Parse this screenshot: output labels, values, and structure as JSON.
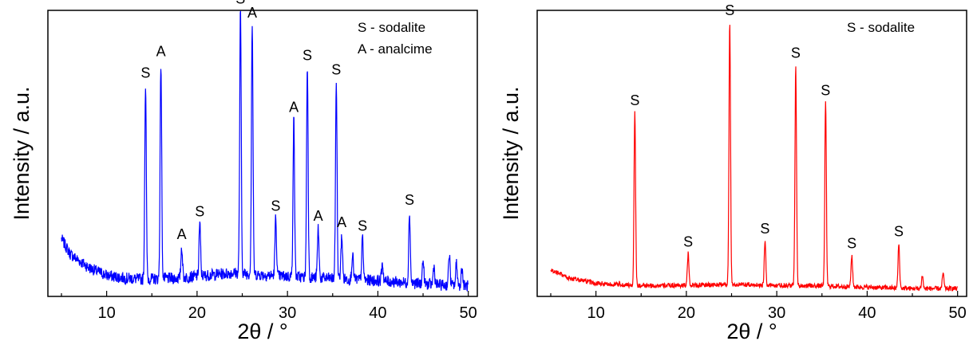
{
  "chart_data": [
    {
      "type": "line",
      "title": "",
      "xlabel": "2θ / °",
      "ylabel": "Intensity / a.u.",
      "xlim": [
        3.5,
        51
      ],
      "ylim": [
        0,
        1.09
      ],
      "xticks": [
        "10",
        "20",
        "30",
        "40",
        "50"
      ],
      "legend": [
        "S - sodalite",
        "A - analcime"
      ],
      "legend_position": "top-right",
      "series": [
        {
          "color": "#0000ff",
          "baseline": [
            [
              5,
              0.22
            ],
            [
              6,
              0.16
            ],
            [
              8,
              0.11
            ],
            [
              10,
              0.08
            ],
            [
              12,
              0.07
            ],
            [
              14,
              0.065
            ],
            [
              18,
              0.07
            ],
            [
              24,
              0.09
            ],
            [
              28,
              0.08
            ],
            [
              34,
              0.07
            ],
            [
              40,
              0.06
            ],
            [
              46,
              0.045
            ],
            [
              50,
              0.04
            ]
          ],
          "noise": 0.022,
          "peaks": [
            {
              "x": 14.3,
              "y": 0.74,
              "label": "S"
            },
            {
              "x": 16.0,
              "y": 0.82,
              "label": "A"
            },
            {
              "x": 18.3,
              "y": 0.12,
              "label": "A"
            },
            {
              "x": 20.3,
              "y": 0.2,
              "label": "S"
            },
            {
              "x": 24.8,
              "y": 1.0,
              "label": "S"
            },
            {
              "x": 26.1,
              "y": 0.95,
              "label": "A"
            },
            {
              "x": 28.7,
              "y": 0.22,
              "label": "S"
            },
            {
              "x": 30.7,
              "y": 0.6,
              "label": "A"
            },
            {
              "x": 32.2,
              "y": 0.8,
              "label": "S"
            },
            {
              "x": 33.4,
              "y": 0.19,
              "label": "A"
            },
            {
              "x": 35.4,
              "y": 0.75,
              "label": "S"
            },
            {
              "x": 36.0,
              "y": 0.17,
              "label": "A"
            },
            {
              "x": 37.2,
              "y": 0.1,
              "label": ""
            },
            {
              "x": 38.3,
              "y": 0.16,
              "label": "S"
            },
            {
              "x": 40.5,
              "y": 0.07,
              "label": ""
            },
            {
              "x": 43.5,
              "y": 0.27,
              "label": "S"
            },
            {
              "x": 45.0,
              "y": 0.09,
              "label": ""
            },
            {
              "x": 46.2,
              "y": 0.07,
              "label": ""
            },
            {
              "x": 47.9,
              "y": 0.12,
              "label": ""
            },
            {
              "x": 48.7,
              "y": 0.09,
              "label": ""
            },
            {
              "x": 49.3,
              "y": 0.07,
              "label": ""
            }
          ]
        }
      ]
    },
    {
      "type": "line",
      "title": "",
      "xlabel": "2θ / °",
      "ylabel": "Intensity / a.u.",
      "xlim": [
        3.5,
        51
      ],
      "ylim": [
        0,
        1.09
      ],
      "xticks": [
        "10",
        "20",
        "30",
        "40",
        "50"
      ],
      "legend": [
        "S - sodalite"
      ],
      "legend_position": "top-right",
      "series": [
        {
          "color": "#ff0000",
          "baseline": [
            [
              5,
              0.1
            ],
            [
              7,
              0.07
            ],
            [
              10,
              0.05
            ],
            [
              15,
              0.04
            ],
            [
              25,
              0.045
            ],
            [
              35,
              0.04
            ],
            [
              45,
              0.03
            ],
            [
              50,
              0.03
            ]
          ],
          "noise": 0.009,
          "peaks": [
            {
              "x": 14.3,
              "y": 0.66,
              "label": "S"
            },
            {
              "x": 20.2,
              "y": 0.12,
              "label": "S"
            },
            {
              "x": 24.8,
              "y": 1.0,
              "label": "S"
            },
            {
              "x": 28.7,
              "y": 0.17,
              "label": "S"
            },
            {
              "x": 32.1,
              "y": 0.84,
              "label": "S"
            },
            {
              "x": 35.4,
              "y": 0.7,
              "label": "S"
            },
            {
              "x": 38.3,
              "y": 0.12,
              "label": "S"
            },
            {
              "x": 43.5,
              "y": 0.17,
              "label": "S"
            },
            {
              "x": 46.1,
              "y": 0.05,
              "label": ""
            },
            {
              "x": 48.4,
              "y": 0.06,
              "label": ""
            }
          ]
        }
      ]
    }
  ]
}
